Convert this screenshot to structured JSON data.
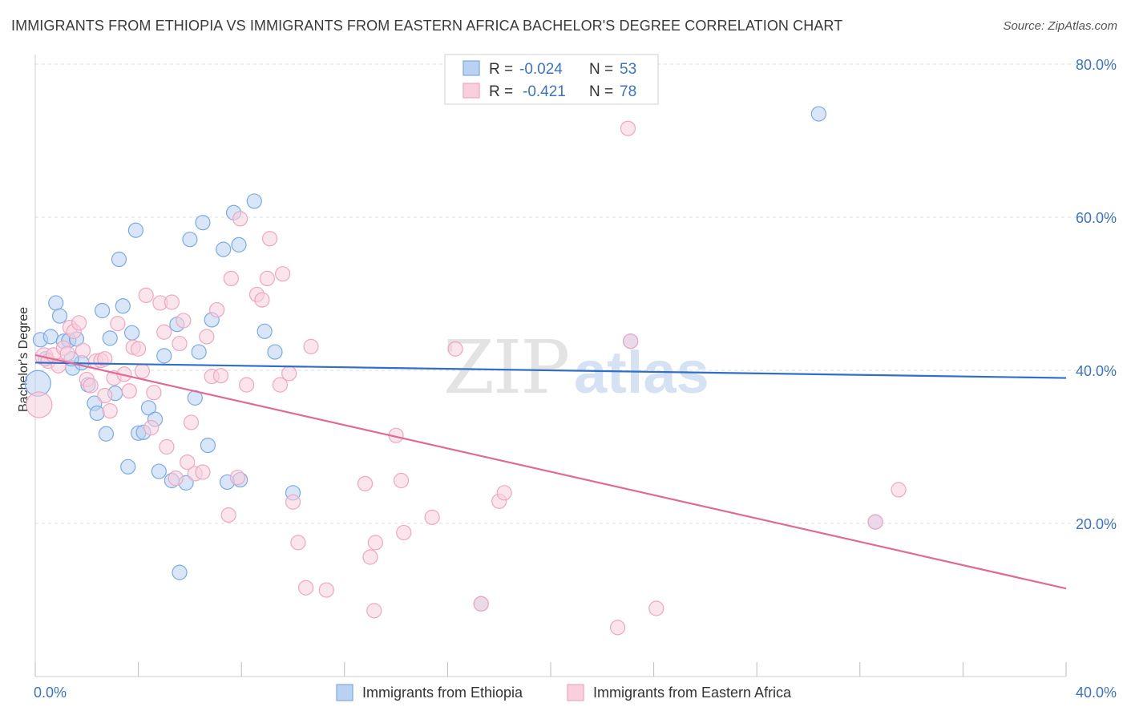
{
  "chart_data": {
    "type": "scatter",
    "title": "IMMIGRANTS FROM ETHIOPIA VS IMMIGRANTS FROM EASTERN AFRICA BACHELOR'S DEGREE CORRELATION CHART",
    "source": "Source: ZipAtlas.com",
    "ylabel": "Bachelor's Degree",
    "xlim": [
      0,
      40
    ],
    "ylim": [
      0,
      84
    ],
    "y_ticks": [
      {
        "value": 20,
        "label": "20.0%"
      },
      {
        "value": 40,
        "label": "40.0%"
      },
      {
        "value": 60,
        "label": "60.0%"
      },
      {
        "value": 80,
        "label": "80.0%"
      }
    ],
    "x_ticks": [
      {
        "value": 0,
        "label": "0.0%"
      },
      {
        "value": 40,
        "label": "40.0%"
      }
    ],
    "x_minor_ticks": [
      0,
      4,
      8,
      12,
      16,
      20,
      24,
      28,
      32,
      36,
      40
    ],
    "watermark": {
      "part1": "ZIP",
      "part2": "atlas"
    },
    "stats": {
      "r_label": "R =",
      "n_label": "N =",
      "rows": [
        {
          "r": "-0.024",
          "n": "53"
        },
        {
          "r": "-0.421",
          "n": "78"
        }
      ]
    },
    "series": [
      {
        "name": "Immigrants from Ethiopia",
        "color": "#7aaae6",
        "fill": "#b9d2f2",
        "line_color": "#2f6fc8",
        "trend": [
          [
            0,
            41.0
          ],
          [
            40,
            39.0
          ]
        ],
        "points": [
          [
            0.1,
            38.3,
            16
          ],
          [
            0.2,
            44.0,
            9
          ],
          [
            0.4,
            41.5,
            9
          ],
          [
            0.6,
            44.4,
            9
          ],
          [
            0.8,
            48.8,
            9
          ],
          [
            0.95,
            47.1,
            9
          ],
          [
            1.1,
            43.8,
            9
          ],
          [
            1.3,
            43.9,
            9
          ],
          [
            1.45,
            40.3,
            9
          ],
          [
            1.6,
            44.1,
            9
          ],
          [
            1.8,
            41.0,
            9
          ],
          [
            2.05,
            38.1,
            9
          ],
          [
            2.3,
            35.7,
            9
          ],
          [
            2.4,
            34.4,
            9
          ],
          [
            2.6,
            47.8,
            9
          ],
          [
            2.75,
            31.7,
            9
          ],
          [
            2.9,
            44.2,
            9
          ],
          [
            3.1,
            37.0,
            9
          ],
          [
            3.25,
            54.5,
            9
          ],
          [
            3.4,
            48.4,
            9
          ],
          [
            3.6,
            27.4,
            9
          ],
          [
            3.75,
            44.9,
            9
          ],
          [
            3.9,
            58.3,
            9
          ],
          [
            4.0,
            31.8,
            9
          ],
          [
            4.2,
            31.9,
            9
          ],
          [
            4.4,
            35.1,
            9
          ],
          [
            4.65,
            33.6,
            9
          ],
          [
            4.8,
            26.8,
            9
          ],
          [
            5.0,
            41.9,
            9
          ],
          [
            5.3,
            25.6,
            9
          ],
          [
            5.5,
            46.0,
            9
          ],
          [
            5.6,
            13.6,
            9
          ],
          [
            5.85,
            25.3,
            9
          ],
          [
            6.0,
            57.1,
            9
          ],
          [
            6.2,
            36.4,
            9
          ],
          [
            6.35,
            42.4,
            9
          ],
          [
            6.5,
            59.3,
            9
          ],
          [
            6.7,
            30.2,
            9
          ],
          [
            6.85,
            46.6,
            9
          ],
          [
            7.3,
            55.8,
            9
          ],
          [
            7.45,
            25.4,
            9
          ],
          [
            7.7,
            60.6,
            9
          ],
          [
            7.9,
            56.4,
            9
          ],
          [
            7.95,
            25.7,
            9
          ],
          [
            8.5,
            62.1,
            9
          ],
          [
            8.9,
            45.1,
            9
          ],
          [
            9.3,
            42.4,
            9
          ],
          [
            10.0,
            24.0,
            9
          ],
          [
            17.3,
            9.5,
            9
          ],
          [
            23.1,
            43.8,
            9
          ],
          [
            30.4,
            73.5,
            9
          ],
          [
            32.6,
            20.2,
            9
          ],
          [
            1.4,
            41.5,
            9
          ]
        ]
      },
      {
        "name": "Immigrants from Eastern Africa",
        "color": "#f0a6bf",
        "fill": "#f8cfdc",
        "line_color": "#e06a95",
        "trend": [
          [
            0,
            42.0
          ],
          [
            40,
            11.5
          ]
        ],
        "points": [
          [
            0.15,
            35.5,
            16
          ],
          [
            0.35,
            41.8,
            11
          ],
          [
            0.5,
            41.2,
            9
          ],
          [
            0.7,
            42.0,
            9
          ],
          [
            0.9,
            40.6,
            9
          ],
          [
            1.1,
            42.9,
            9
          ],
          [
            1.35,
            45.6,
            9
          ],
          [
            1.5,
            45.1,
            9
          ],
          [
            1.7,
            46.2,
            9
          ],
          [
            1.85,
            42.6,
            9
          ],
          [
            2.0,
            38.8,
            9
          ],
          [
            2.15,
            38.0,
            9
          ],
          [
            2.35,
            41.2,
            9
          ],
          [
            2.55,
            41.3,
            9
          ],
          [
            2.7,
            36.7,
            9
          ],
          [
            2.9,
            34.7,
            9
          ],
          [
            3.05,
            39.0,
            9
          ],
          [
            3.2,
            46.1,
            9
          ],
          [
            3.45,
            39.5,
            9
          ],
          [
            3.65,
            37.3,
            9
          ],
          [
            3.8,
            43.0,
            9
          ],
          [
            4.0,
            42.8,
            9
          ],
          [
            4.15,
            39.9,
            9
          ],
          [
            4.3,
            49.8,
            9
          ],
          [
            4.5,
            32.5,
            9
          ],
          [
            4.6,
            37.1,
            9
          ],
          [
            4.85,
            48.8,
            9
          ],
          [
            5.0,
            45.0,
            9
          ],
          [
            5.1,
            30.0,
            9
          ],
          [
            5.3,
            48.9,
            9
          ],
          [
            5.45,
            25.9,
            9
          ],
          [
            5.6,
            43.5,
            9
          ],
          [
            5.75,
            46.5,
            9
          ],
          [
            5.9,
            28.0,
            9
          ],
          [
            6.05,
            33.2,
            9
          ],
          [
            6.2,
            26.5,
            9
          ],
          [
            6.5,
            26.7,
            9
          ],
          [
            6.65,
            44.4,
            9
          ],
          [
            6.85,
            39.2,
            9
          ],
          [
            7.05,
            47.9,
            9
          ],
          [
            7.2,
            39.3,
            9
          ],
          [
            7.5,
            21.1,
            9
          ],
          [
            7.6,
            52.0,
            9
          ],
          [
            7.85,
            26.0,
            9
          ],
          [
            7.95,
            59.8,
            9
          ],
          [
            8.2,
            38.1,
            9
          ],
          [
            8.6,
            49.9,
            9
          ],
          [
            8.8,
            49.2,
            9
          ],
          [
            9.0,
            52.0,
            9
          ],
          [
            9.1,
            57.2,
            9
          ],
          [
            9.5,
            38.1,
            9
          ],
          [
            9.6,
            52.6,
            9
          ],
          [
            9.85,
            39.6,
            9
          ],
          [
            10.0,
            22.8,
            9
          ],
          [
            10.2,
            17.5,
            9
          ],
          [
            10.5,
            11.6,
            9
          ],
          [
            10.7,
            43.1,
            9
          ],
          [
            11.3,
            11.3,
            9
          ],
          [
            12.8,
            25.2,
            9
          ],
          [
            13.0,
            15.6,
            9
          ],
          [
            13.2,
            17.5,
            9
          ],
          [
            13.15,
            8.6,
            9
          ],
          [
            14.0,
            31.5,
            9
          ],
          [
            14.2,
            25.6,
            9
          ],
          [
            14.3,
            18.8,
            9
          ],
          [
            15.4,
            20.8,
            9
          ],
          [
            16.3,
            42.8,
            9
          ],
          [
            18.0,
            22.9,
            9
          ],
          [
            18.2,
            24.0,
            9
          ],
          [
            17.3,
            9.5,
            9
          ],
          [
            22.6,
            6.4,
            9
          ],
          [
            23.0,
            71.6,
            9
          ],
          [
            23.1,
            43.8,
            9
          ],
          [
            24.1,
            8.9,
            9
          ],
          [
            32.6,
            20.2,
            9
          ],
          [
            33.5,
            24.4,
            9
          ],
          [
            1.25,
            42.2,
            9
          ],
          [
            2.7,
            41.5,
            9
          ]
        ]
      }
    ]
  }
}
